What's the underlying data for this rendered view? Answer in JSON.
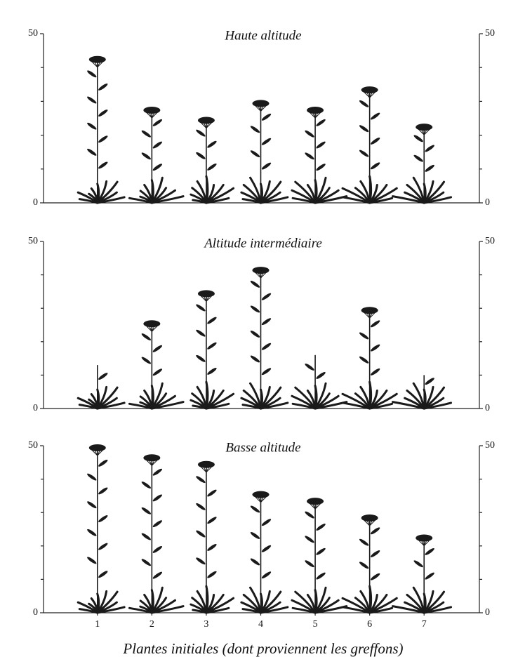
{
  "chart_data": [
    {
      "type": "plant",
      "title": "Haute altitude",
      "categories": [
        null,
        null,
        null,
        null,
        null,
        null,
        null
      ],
      "values": [
        43,
        28,
        25,
        30,
        28,
        34,
        23
      ],
      "ylim": [
        0,
        50
      ],
      "yticks": [
        0,
        50
      ],
      "minor_yticks": [
        10,
        20,
        30,
        40
      ],
      "color": "#1a1a1a"
    },
    {
      "type": "plant",
      "title": "Altitude intermédiaire",
      "categories": [
        null,
        null,
        null,
        null,
        null,
        null,
        null
      ],
      "values": [
        13,
        26,
        35,
        42,
        16,
        30,
        10
      ],
      "ylim": [
        0,
        50
      ],
      "yticks": [
        0,
        50
      ],
      "minor_yticks": [
        10,
        20,
        30,
        40
      ],
      "color": "#1a1a1a"
    },
    {
      "type": "plant",
      "title": "Basse altitude",
      "categories": [
        "1",
        "2",
        "3",
        "4",
        "5",
        "6",
        "7"
      ],
      "values": [
        50,
        47,
        45,
        36,
        34,
        29,
        23
      ],
      "ylim": [
        0,
        50
      ],
      "yticks": [
        0,
        50
      ],
      "minor_yticks": [
        10,
        20,
        30,
        40
      ],
      "color": "#1a1a1a",
      "x_label": "Plantes initiales (dont proviennent les greffons)"
    }
  ]
}
